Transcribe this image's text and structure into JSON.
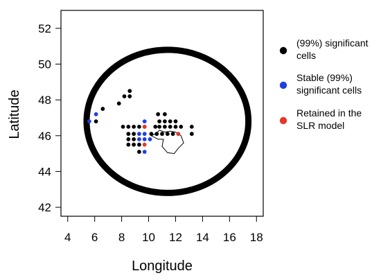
{
  "chart_data": {
    "type": "scatter",
    "title": "",
    "xlabel": "Longitude",
    "ylabel": "Latitude",
    "xlim": [
      3.5,
      18.5
    ],
    "ylim": [
      41.5,
      53.0
    ],
    "xticks": [
      4,
      6,
      8,
      10,
      12,
      14,
      16,
      18
    ],
    "yticks": [
      42,
      44,
      46,
      48,
      50,
      52
    ],
    "grid": false,
    "legend_position": "right",
    "legend": [
      {
        "label_lines": [
          "(99%) significant",
          "cells"
        ],
        "color": "#000000"
      },
      {
        "label_lines": [
          "Stable (99%)",
          "significant cells"
        ],
        "color": "#1f3fe0"
      },
      {
        "label_lines": [
          "Retained in the",
          "SLR model"
        ],
        "color": "#e03a2a"
      }
    ],
    "circle": {
      "center": [
        11.4,
        46.8
      ],
      "radius_x": 6.0,
      "radius_y": 4.0
    },
    "series": [
      {
        "name": "(99%) significant cells",
        "color": "#000000",
        "points": [
          [
            6.1,
            46.8
          ],
          [
            6.6,
            47.5
          ],
          [
            7.8,
            47.8
          ],
          [
            8.2,
            48.2
          ],
          [
            8.6,
            48.2
          ],
          [
            8.6,
            48.5
          ],
          [
            8.1,
            46.5
          ],
          [
            8.5,
            46.5
          ],
          [
            8.9,
            46.5
          ],
          [
            9.3,
            46.5
          ],
          [
            9.7,
            46.5
          ],
          [
            8.5,
            46.1
          ],
          [
            8.9,
            46.1
          ],
          [
            8.5,
            45.8
          ],
          [
            8.9,
            45.8
          ],
          [
            8.5,
            45.5
          ],
          [
            8.9,
            45.5
          ],
          [
            9.3,
            45.5
          ],
          [
            9.3,
            45.1
          ],
          [
            10.5,
            46.5
          ],
          [
            10.8,
            46.5
          ],
          [
            11.2,
            46.5
          ],
          [
            11.6,
            46.5
          ],
          [
            12.0,
            46.5
          ],
          [
            12.4,
            46.5
          ],
          [
            13.2,
            46.5
          ],
          [
            10.2,
            46.1
          ],
          [
            10.6,
            46.1
          ],
          [
            11.0,
            46.1
          ],
          [
            11.4,
            46.1
          ],
          [
            11.8,
            46.1
          ],
          [
            13.2,
            46.1
          ],
          [
            10.8,
            46.8
          ],
          [
            11.2,
            46.8
          ],
          [
            11.6,
            46.8
          ],
          [
            12.0,
            46.8
          ],
          [
            10.7,
            47.2
          ],
          [
            11.2,
            47.2
          ]
        ]
      },
      {
        "name": "Stable (99%) significant cells",
        "color": "#1f3fe0",
        "points": [
          [
            5.6,
            46.8
          ],
          [
            6.1,
            47.2
          ],
          [
            9.7,
            46.8
          ],
          [
            9.3,
            46.1
          ],
          [
            9.7,
            46.1
          ],
          [
            9.3,
            45.8
          ],
          [
            9.7,
            45.8
          ],
          [
            10.1,
            45.8
          ],
          [
            9.7,
            45.1
          ]
        ]
      },
      {
        "name": "Retained in the SLR model",
        "color": "#e03a2a",
        "points": [
          [
            9.7,
            46.5
          ],
          [
            9.7,
            45.5
          ],
          [
            12.2,
            46.1
          ]
        ]
      }
    ],
    "outline_polyline": [
      [
        10.5,
        46.1
      ],
      [
        10.8,
        46.3
      ],
      [
        11.2,
        46.2
      ],
      [
        11.6,
        46.25
      ],
      [
        12.0,
        46.2
      ],
      [
        12.4,
        46.0
      ],
      [
        12.6,
        45.6
      ],
      [
        12.2,
        45.3
      ],
      [
        11.9,
        45.0
      ],
      [
        11.4,
        45.05
      ],
      [
        11.0,
        45.4
      ],
      [
        11.1,
        45.8
      ],
      [
        10.7,
        45.8
      ],
      [
        10.2,
        46.0
      ],
      [
        10.5,
        46.1
      ]
    ]
  }
}
